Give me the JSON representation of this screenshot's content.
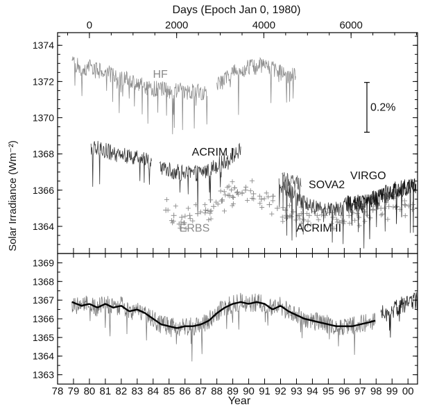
{
  "chart_data": [
    {
      "type": "line",
      "panel": "top",
      "title": "",
      "top_axis_label": "Days (Epoch Jan 0, 1980)",
      "top_ticks": [
        0,
        2000,
        4000,
        6000
      ],
      "top_tick_labels": [
        "0",
        "2000",
        "4000",
        "6000"
      ],
      "ylabel": "Solar Irradiance (Wm⁻²)",
      "ylim": [
        1362.5,
        1374.7
      ],
      "yticks": [
        1364,
        1366,
        1368,
        1370,
        1372,
        1374
      ],
      "ytick_labels": [
        "1364",
        "1366",
        "1368",
        "1370",
        "1372",
        "1374"
      ],
      "xlim": [
        1978.0,
        2000.6
      ],
      "scale_bar_label": "0.2%",
      "scale_bar_range": [
        1369.2,
        1371.95
      ],
      "series": [
        {
          "name": "HF",
          "label_at": [
            1984.45,
            1372.2
          ],
          "label_color": "#888888",
          "color": "#8c8c8c",
          "style": "noisy-line",
          "x": [
            1978.9,
            1979.5,
            1980.0,
            1980.5,
            1981.0,
            1981.5,
            1982.0,
            1982.5,
            1983.0,
            1983.5,
            1984.0,
            1984.5,
            1985.0,
            1985.5,
            1986.0,
            1986.5,
            1987.0,
            1987.4
          ],
          "y": [
            1373.1,
            1372.7,
            1372.8,
            1372.6,
            1372.6,
            1372.3,
            1372.2,
            1372.1,
            1371.9,
            1371.7,
            1371.6,
            1371.6,
            1371.5,
            1371.5,
            1371.5,
            1371.5,
            1371.4,
            1371.4
          ]
        },
        {
          "name": "HF",
          "color": "#8c8c8c",
          "style": "noisy-line",
          "x": [
            1988.0,
            1988.5,
            1989.0,
            1989.5,
            1990.0,
            1990.5,
            1991.0,
            1991.5,
            1992.0,
            1992.5,
            1992.95
          ],
          "y": [
            1371.8,
            1372.1,
            1372.5,
            1372.6,
            1372.8,
            1372.8,
            1373.0,
            1372.7,
            1372.5,
            1372.2,
            1372.4
          ]
        },
        {
          "name": "ACRIM I",
          "label_at": [
            1987.75,
            1367.9
          ],
          "label_color": "#111111",
          "color": "#3a3a3a",
          "style": "noisy-line",
          "x": [
            1980.1,
            1980.5,
            1981.0,
            1981.5,
            1982.0,
            1982.5,
            1983.0,
            1983.5,
            1983.9
          ],
          "y": [
            1368.4,
            1368.3,
            1368.2,
            1368.0,
            1367.9,
            1367.9,
            1367.8,
            1367.7,
            1367.5
          ]
        },
        {
          "name": "ACRIM I",
          "color": "#3a3a3a",
          "style": "noisy-line",
          "x": [
            1984.4,
            1985.0,
            1985.5,
            1986.0,
            1986.5,
            1987.0,
            1987.5,
            1988.0,
            1988.5,
            1989.0,
            1989.5
          ],
          "y": [
            1367.3,
            1367.1,
            1367.0,
            1366.9,
            1366.9,
            1367.0,
            1367.1,
            1367.4,
            1367.6,
            1367.9,
            1368.2
          ]
        },
        {
          "name": "ERBS",
          "label_at": [
            1986.6,
            1363.7
          ],
          "label_color": "#8a8a8a",
          "color": "#8a8a8a",
          "style": "plus-markers",
          "x": [
            1984.8,
            1985.3,
            1985.8,
            1986.3,
            1986.8,
            1987.3,
            1987.8,
            1988.3,
            1988.8,
            1989.3,
            1989.8,
            1990.3,
            1990.8,
            1991.3,
            1991.8,
            1992.3,
            1992.8,
            1993.3,
            1993.8,
            1994.3,
            1994.8,
            1995.3,
            1995.8,
            1996.3,
            1996.8,
            1997.3,
            1997.8,
            1998.3,
            1998.8,
            1999.3,
            1999.8,
            2000.3
          ],
          "y": [
            1364.9,
            1364.6,
            1364.5,
            1364.6,
            1364.7,
            1364.9,
            1365.1,
            1365.4,
            1365.7,
            1365.9,
            1366.0,
            1365.8,
            1365.5,
            1365.2,
            1365.0,
            1364.9,
            1364.8,
            1364.7,
            1364.6,
            1364.6,
            1364.6,
            1364.5,
            1364.6,
            1364.6,
            1364.7,
            1364.8,
            1364.9,
            1365.0,
            1365.1,
            1365.1,
            1365.2,
            1365.2
          ]
        },
        {
          "name": "ACRIM II",
          "label_at": [
            1994.4,
            1363.7
          ],
          "label_color": "#111111",
          "color": "#3a3a3a",
          "style": "noisy-line",
          "x": [
            1991.9,
            1992.5,
            1993.0,
            1993.5,
            1994.0,
            1994.5,
            1995.0,
            1995.5,
            1996.0,
            1996.5,
            1997.0,
            1997.5,
            1998.0,
            1998.5,
            1999.0,
            1999.5,
            2000.0,
            2000.5
          ],
          "y": [
            1366.4,
            1366.0,
            1365.6,
            1365.3,
            1365.1,
            1365.0,
            1365.0,
            1365.0,
            1365.1,
            1365.2,
            1365.3,
            1365.4,
            1365.6,
            1365.7,
            1365.9,
            1366.0,
            1366.1,
            1366.2
          ]
        },
        {
          "name": "SOVA2",
          "label_at": [
            1994.9,
            1366.1
          ],
          "label_color": "#111111",
          "color": "#5a5a5a",
          "style": "noisy-line",
          "x": [
            1992.1,
            1992.4,
            1992.7,
            1993.0,
            1993.3
          ],
          "y": [
            1366.6,
            1366.5,
            1366.5,
            1366.4,
            1366.2
          ]
        },
        {
          "name": "VIRGO",
          "label_at": [
            1997.5,
            1366.6
          ],
          "label_color": "#111111",
          "color": "#111111",
          "style": "noisy-line",
          "x": [
            1996.1,
            1996.5,
            1997.0,
            1997.5,
            1998.0,
            1998.5,
            1999.0,
            1999.5,
            2000.0,
            2000.5
          ],
          "y": [
            1365.3,
            1365.3,
            1365.3,
            1365.4,
            1365.6,
            1365.8,
            1366.0,
            1366.1,
            1366.2,
            1366.2
          ]
        }
      ]
    },
    {
      "type": "line",
      "panel": "bottom",
      "title": "",
      "xlabel": "Year",
      "xlim": [
        1978.0,
        2000.6
      ],
      "xticks": [
        1978,
        1979,
        1980,
        1981,
        1982,
        1983,
        1984,
        1985,
        1986,
        1987,
        1988,
        1989,
        1990,
        1991,
        1992,
        1993,
        1994,
        1995,
        1996,
        1997,
        1998,
        1999,
        2000
      ],
      "xtick_labels": [
        "78",
        "79",
        "80",
        "81",
        "82",
        "83",
        "84",
        "85",
        "86",
        "87",
        "88",
        "89",
        "90",
        "91",
        "92",
        "93",
        "94",
        "95",
        "96",
        "97",
        "98",
        "99",
        "00"
      ],
      "ylim": [
        1362.5,
        1369.5
      ],
      "yticks": [
        1363,
        1364,
        1365,
        1366,
        1367,
        1368,
        1369
      ],
      "ytick_labels": [
        "1363",
        "1364",
        "1365",
        "1366",
        "1367",
        "1368",
        "1369"
      ],
      "series": [
        {
          "color": "#7a7a7a",
          "style": "noisy-line",
          "x": [
            1978.9,
            1979.5,
            1980.0,
            1980.5,
            1981.0,
            1981.5,
            1982.0,
            1982.5,
            1983.0,
            1983.5,
            1984.0,
            1984.5,
            1985.0,
            1985.5,
            1986.0,
            1986.5,
            1987.0,
            1987.5,
            1988.0,
            1988.5,
            1989.0,
            1989.5,
            1990.0,
            1990.5,
            1991.0,
            1991.5,
            1992.0,
            1992.5,
            1993.0,
            1993.5,
            1994.0,
            1994.5,
            1995.0,
            1995.5,
            1996.0,
            1996.5,
            1997.0,
            1997.5,
            1997.95
          ],
          "y": [
            1366.8,
            1366.7,
            1366.8,
            1366.6,
            1366.8,
            1366.6,
            1366.7,
            1366.4,
            1366.5,
            1366.3,
            1366.0,
            1365.7,
            1365.6,
            1365.5,
            1365.6,
            1365.6,
            1365.7,
            1365.9,
            1366.3,
            1366.6,
            1366.8,
            1366.9,
            1366.8,
            1366.9,
            1366.8,
            1366.5,
            1366.7,
            1366.4,
            1366.2,
            1366.0,
            1365.9,
            1365.8,
            1365.7,
            1365.6,
            1365.6,
            1365.6,
            1365.7,
            1365.8,
            1365.9
          ]
        },
        {
          "color": "#222222",
          "style": "noisy-line",
          "x": [
            1998.3,
            1998.6,
            1999.0,
            1999.3,
            1999.6,
            2000.0,
            2000.3,
            2000.6
          ],
          "y": [
            1366.2,
            1366.3,
            1366.4,
            1366.6,
            1366.7,
            1366.8,
            1366.9,
            1367.0
          ]
        },
        {
          "color": "#000000",
          "style": "smooth-line",
          "x": [
            1978.9,
            1979.5,
            1980.0,
            1980.5,
            1981.0,
            1981.5,
            1982.0,
            1982.5,
            1983.0,
            1983.5,
            1984.0,
            1984.5,
            1985.0,
            1985.5,
            1986.0,
            1986.5,
            1987.0,
            1987.5,
            1988.0,
            1988.5,
            1989.0,
            1989.5,
            1990.0,
            1990.5,
            1991.0,
            1991.5,
            1992.0,
            1992.5,
            1993.0,
            1993.5,
            1994.0,
            1994.5,
            1995.0,
            1995.5,
            1996.0,
            1996.5,
            1997.0,
            1997.5,
            1997.95
          ],
          "y": [
            1366.9,
            1366.7,
            1366.8,
            1366.6,
            1366.8,
            1366.6,
            1366.7,
            1366.4,
            1366.5,
            1366.3,
            1366.0,
            1365.7,
            1365.6,
            1365.5,
            1365.6,
            1365.6,
            1365.7,
            1365.9,
            1366.3,
            1366.6,
            1366.8,
            1366.9,
            1366.8,
            1366.9,
            1366.8,
            1366.5,
            1366.7,
            1366.4,
            1366.2,
            1366.0,
            1365.9,
            1365.8,
            1365.7,
            1365.6,
            1365.6,
            1365.6,
            1365.7,
            1365.8,
            1365.9
          ]
        }
      ]
    }
  ]
}
